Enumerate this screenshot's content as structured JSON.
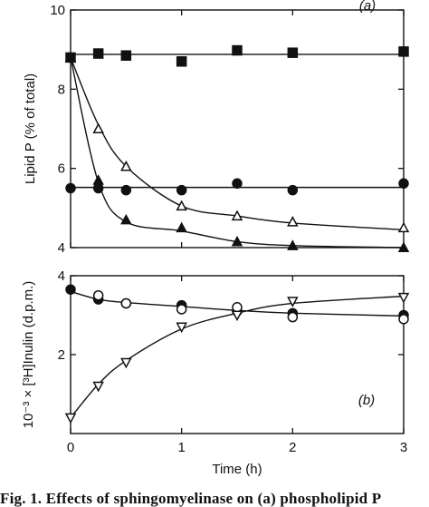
{
  "caption": "Fig. 1. Effects of sphingomyelinase on (a) phospholipid P",
  "chart_data": [
    {
      "type": "line",
      "panel_label": "(a)",
      "xlabel": "",
      "ylabel": "Lipid P (% of total)",
      "xlim": [
        0,
        3
      ],
      "ylim": [
        4,
        10
      ],
      "x_ticks": [
        0,
        1,
        2,
        3
      ],
      "x_tick_labels": [
        "",
        "",
        "",
        ""
      ],
      "y_ticks": [
        4,
        6,
        8,
        10
      ],
      "y_tick_labels": [
        "4",
        "6",
        "8",
        "10"
      ],
      "series": [
        {
          "marker": "filled-square",
          "x": [
            0,
            0.25,
            0.5,
            1.0,
            1.5,
            2.0,
            3.0
          ],
          "y": [
            8.8,
            8.9,
            8.85,
            8.7,
            8.98,
            8.92,
            8.95
          ],
          "fit_x": [
            0,
            3
          ],
          "fit_y": [
            8.88,
            8.88
          ]
        },
        {
          "marker": "open-triangle",
          "x": [
            0,
            0.25,
            0.5,
            1.0,
            1.5,
            2.0,
            3.0
          ],
          "y": [
            8.8,
            7.0,
            6.05,
            5.05,
            4.8,
            4.65,
            4.5
          ],
          "fit_x": [
            0,
            0.25,
            0.5,
            1.0,
            1.5,
            2.0,
            3.0
          ],
          "fit_y": [
            8.8,
            7.1,
            6.05,
            5.05,
            4.8,
            4.62,
            4.45
          ]
        },
        {
          "marker": "filled-triangle",
          "x": [
            0,
            0.25,
            0.5,
            1.0,
            1.5,
            2.0,
            3.0
          ],
          "y": [
            8.8,
            5.7,
            4.7,
            4.5,
            4.15,
            4.05,
            4.0
          ],
          "fit_x": [
            0,
            0.25,
            0.5,
            1.0,
            1.5,
            2.0,
            3.0
          ],
          "fit_y": [
            8.8,
            5.65,
            4.65,
            4.42,
            4.15,
            4.05,
            4.0
          ]
        },
        {
          "marker": "filled-circle",
          "x": [
            0,
            0.25,
            0.5,
            1.0,
            1.5,
            2.0,
            3.0
          ],
          "y": [
            5.5,
            5.5,
            5.45,
            5.45,
            5.62,
            5.45,
            5.62
          ],
          "fit_x": [
            0,
            3
          ],
          "fit_y": [
            5.52,
            5.52
          ]
        }
      ]
    },
    {
      "type": "line",
      "panel_label": "(b)",
      "xlabel": "Time (h)",
      "ylabel": "10⁻³ × [³H]Inulin (d.p.m.)",
      "xlim": [
        0,
        3
      ],
      "ylim": [
        0,
        4
      ],
      "x_ticks": [
        0,
        1,
        2,
        3
      ],
      "x_tick_labels": [
        "0",
        "1",
        "2",
        "3"
      ],
      "y_ticks": [
        2,
        4
      ],
      "y_tick_labels": [
        "2",
        "4"
      ],
      "series": [
        {
          "marker": "filled-circle",
          "x": [
            0,
            0.25,
            0.5,
            1.0,
            1.5,
            2.0,
            3.0
          ],
          "y": [
            3.65,
            3.4,
            3.3,
            3.25,
            3.1,
            3.05,
            3.0
          ],
          "fit_x": [
            0,
            0.25,
            0.5,
            1.0,
            1.5,
            2.0,
            3.0
          ],
          "fit_y": [
            3.6,
            3.4,
            3.32,
            3.22,
            3.12,
            3.05,
            2.98
          ]
        },
        {
          "marker": "open-circle",
          "x": [
            0.25,
            0.5,
            1.0,
            1.5,
            2.0,
            3.0
          ],
          "y": [
            3.5,
            3.3,
            3.15,
            3.2,
            2.95,
            2.9
          ],
          "fit_x": [],
          "fit_y": []
        },
        {
          "marker": "open-triangle-down",
          "x": [
            0,
            0.25,
            0.5,
            1.0,
            1.5,
            2.0,
            3.0
          ],
          "y": [
            0.4,
            1.2,
            1.8,
            2.7,
            3.0,
            3.35,
            3.45
          ],
          "fit_x": [
            0,
            0.25,
            0.5,
            1.0,
            1.5,
            2.0,
            3.0
          ],
          "fit_y": [
            0.4,
            1.25,
            1.85,
            2.65,
            3.05,
            3.3,
            3.48
          ]
        }
      ]
    }
  ]
}
